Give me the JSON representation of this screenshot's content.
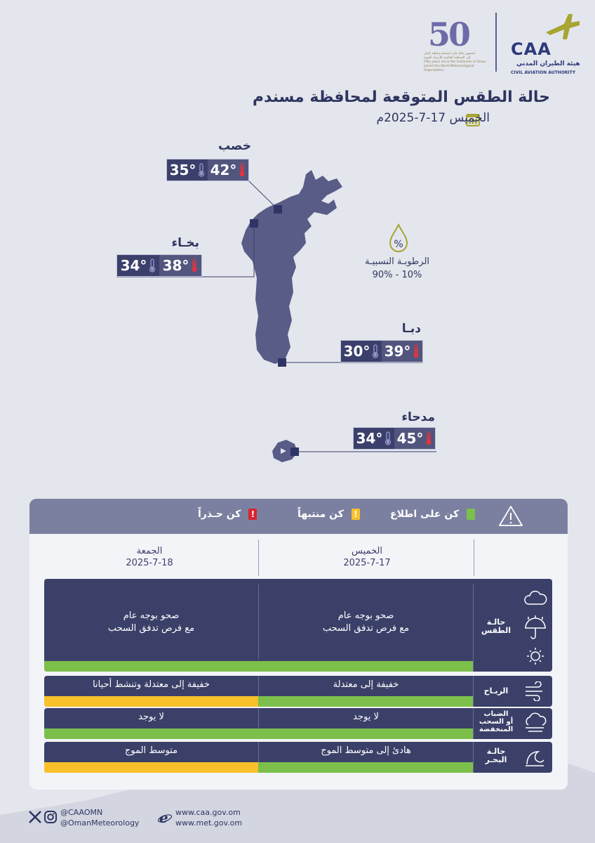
{
  "header": {
    "caa_logo_text": "CAA",
    "caa_ar": "هيئة الطيران المدني",
    "caa_en": "CIVIL AVIATION AUTHORITY",
    "fifty_logo_text": "50",
    "fifty_lines": [
      "خمسون عاما على انضمام سلطنة عُمان",
      "إلى المنظمة العالمية للأرصاد الجوية",
      "Fifty years since the Sultanate of Oman",
      "joined the World Meteorological Organization"
    ]
  },
  "title": "حالة الطقس المتوقعة لمحافظة مسندم",
  "date": "الخميس 17-7-2025م",
  "cities": [
    {
      "name": "خصب",
      "max": "42°",
      "min": "35°"
    },
    {
      "name": "بخـاء",
      "max": "38°",
      "min": "34°"
    },
    {
      "name": "دبـا",
      "max": "39°",
      "min": "30°"
    },
    {
      "name": "مدحاء",
      "max": "45°",
      "min": "34°"
    }
  ],
  "humidity": {
    "label": "الرطوبـة النسبيـة",
    "value": "10% - 90%",
    "icon": "percent-drop-icon"
  },
  "legend": {
    "aware": "كن على اطلاع",
    "attention": "كن منتبهاً",
    "warning": "كن حـذراً",
    "colors": {
      "aware": "#7cc04b",
      "attention": "#f8c12a",
      "warning": "#d92330"
    }
  },
  "days": [
    {
      "name": "الخميس",
      "date": "2025-7-17"
    },
    {
      "name": "الجمعة",
      "date": "2025-7-18"
    }
  ],
  "rows": [
    {
      "label": "حالـة\nالطقس",
      "thu": "صحو بوجه عام\nمع فرص تدفق السحب",
      "fri": "صحو بوجه عام\nمع فرص تدفق السحب",
      "thu_level": "aware",
      "fri_level": "aware"
    },
    {
      "label": "الريـاح",
      "thu": "خفيفة إلى معتدلة",
      "fri": "خفيفة إلى معتدلة وتنشط أحيانا",
      "thu_level": "aware",
      "fri_level": "attention"
    },
    {
      "label": "الضباب\nأو السحب\nالمنخفضة",
      "thu": "لا يوجد",
      "fri": "لا يوجد",
      "thu_level": "aware",
      "fri_level": "aware"
    },
    {
      "label": "حالـة\nالبحـر",
      "thu": "هادئ إلى متوسط الموج",
      "fri": "متوسط الموج",
      "thu_level": "aware",
      "fri_level": "attention"
    }
  ],
  "footer": {
    "handle1": "@CAAOMN",
    "handle2": "@OmanMeteorology",
    "site1": "www.caa.gov.om",
    "site2": "www.met.gov.om"
  }
}
